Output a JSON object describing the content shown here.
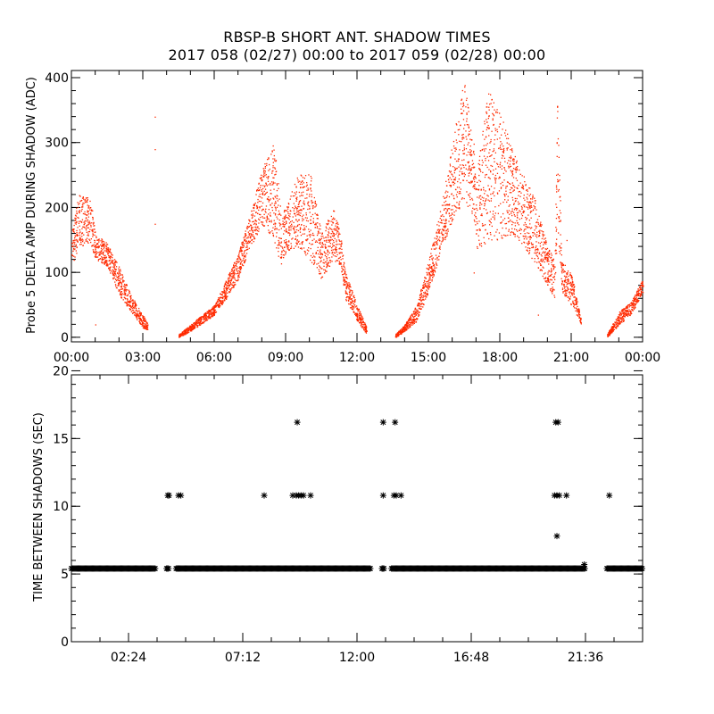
{
  "title": "RBSP-B SHORT ANT. SHADOW TIMES",
  "subtitle": "2017 058 (02/27) 00:00 to 2017 059 (02/28) 00:00",
  "colors": {
    "points": "#ff2a00",
    "axes": "#000000",
    "stars": "#000000"
  },
  "chart_data": [
    {
      "type": "scatter",
      "ylabel": "Probe 5 DELTA AMP DURING SHADOW (ADC)",
      "xlabel": "",
      "xlim_hours": [
        0,
        24
      ],
      "ylim": [
        -7,
        411
      ],
      "xticks": [
        {
          "v": 0,
          "label": "00:00"
        },
        {
          "v": 3,
          "label": "03:00"
        },
        {
          "v": 6,
          "label": "06:00"
        },
        {
          "v": 9,
          "label": "09:00"
        },
        {
          "v": 12,
          "label": "12:00"
        },
        {
          "v": 15,
          "label": "15:00"
        },
        {
          "v": 18,
          "label": "18:00"
        },
        {
          "v": 21,
          "label": "21:00"
        },
        {
          "v": 24,
          "label": "00:00"
        }
      ],
      "yticks": [
        {
          "v": 0,
          "label": "0"
        },
        {
          "v": 100,
          "label": "100"
        },
        {
          "v": 200,
          "label": "200"
        },
        {
          "v": 300,
          "label": "300"
        },
        {
          "v": 400,
          "label": "400"
        }
      ],
      "envelope_note": "dense red point cloud; bands given as [hour, low, high] in ADC",
      "bands": [
        [
          [
            0.0,
            110,
            165
          ],
          [
            0.3,
            140,
            220
          ],
          [
            0.8,
            145,
            215
          ],
          [
            1.0,
            120,
            160
          ],
          [
            1.5,
            110,
            145
          ],
          [
            2.0,
            65,
            110
          ],
          [
            2.5,
            40,
            65
          ],
          [
            3.0,
            15,
            35
          ],
          [
            3.2,
            12,
            20
          ]
        ],
        [
          [
            4.5,
            0,
            5
          ],
          [
            5.0,
            10,
            20
          ],
          [
            5.5,
            22,
            35
          ],
          [
            6.0,
            35,
            50
          ],
          [
            6.5,
            60,
            90
          ],
          [
            7.0,
            90,
            130
          ],
          [
            7.5,
            140,
            190
          ],
          [
            8.0,
            170,
            260
          ],
          [
            8.5,
            150,
            300
          ],
          [
            8.8,
            110,
            200
          ],
          [
            9.0,
            130,
            200
          ],
          [
            9.5,
            140,
            250
          ],
          [
            10.0,
            120,
            260
          ],
          [
            10.5,
            90,
            160
          ],
          [
            11.0,
            120,
            200
          ],
          [
            11.3,
            110,
            160
          ],
          [
            11.5,
            60,
            100
          ],
          [
            12.0,
            25,
            50
          ],
          [
            12.4,
            5,
            15
          ]
        ],
        [
          [
            13.6,
            0,
            5
          ],
          [
            14.0,
            10,
            20
          ],
          [
            14.5,
            25,
            50
          ],
          [
            15.0,
            70,
            120
          ],
          [
            15.5,
            130,
            200
          ],
          [
            16.0,
            180,
            300
          ],
          [
            16.5,
            210,
            400
          ],
          [
            16.9,
            180,
            300
          ],
          [
            17.0,
            130,
            250
          ],
          [
            17.5,
            150,
            380
          ],
          [
            18.0,
            150,
            350
          ],
          [
            18.5,
            160,
            290
          ],
          [
            19.0,
            140,
            250
          ],
          [
            19.5,
            110,
            210
          ],
          [
            20.0,
            80,
            140
          ],
          [
            20.3,
            60,
            120
          ],
          [
            20.4,
            160,
            380
          ],
          [
            20.6,
            70,
            120
          ],
          [
            21.0,
            50,
            100
          ],
          [
            21.4,
            20,
            30
          ]
        ],
        [
          [
            22.5,
            0,
            5
          ],
          [
            23.0,
            20,
            40
          ],
          [
            23.5,
            35,
            55
          ],
          [
            24.0,
            70,
            90
          ]
        ]
      ],
      "outliers": [
        [
          3.5,
          340
        ],
        [
          3.5,
          290
        ],
        [
          3.5,
          175
        ],
        [
          1.0,
          20
        ],
        [
          16.9,
          100
        ],
        [
          20.8,
          150
        ],
        [
          19.6,
          35
        ]
      ]
    },
    {
      "type": "scatter",
      "ylabel": "TIME BETWEEN SHADOWS (SEC)",
      "xlabel": "",
      "xlim_hours": [
        0,
        24
      ],
      "ylim": [
        0,
        19.7
      ],
      "xticks": [
        {
          "v": 2.4,
          "label": "02:24"
        },
        {
          "v": 7.2,
          "label": "07:12"
        },
        {
          "v": 12,
          "label": "12:00"
        },
        {
          "v": 16.8,
          "label": "16:48"
        },
        {
          "v": 21.6,
          "label": "21:36"
        }
      ],
      "yticks": [
        {
          "v": 0,
          "label": "0"
        },
        {
          "v": 5,
          "label": "5"
        },
        {
          "v": 10,
          "label": "10"
        },
        {
          "v": 15,
          "label": "15"
        },
        {
          "v": 20,
          "label": "20"
        }
      ],
      "baseline_value": 5.4,
      "baseline_segments_hours": [
        [
          0,
          3.55
        ],
        [
          4.0,
          4.1
        ],
        [
          4.4,
          12.57
        ],
        [
          13.05,
          13.15
        ],
        [
          13.45,
          21.6
        ],
        [
          22.5,
          24
        ]
      ],
      "points": [
        [
          9.49,
          16.2
        ],
        [
          13.1,
          16.2
        ],
        [
          13.6,
          16.2
        ],
        [
          20.35,
          16.2
        ],
        [
          20.45,
          16.2
        ],
        [
          4.05,
          10.8
        ],
        [
          4.1,
          10.8
        ],
        [
          4.5,
          10.8
        ],
        [
          4.6,
          10.8
        ],
        [
          8.1,
          10.8
        ],
        [
          9.3,
          10.8
        ],
        [
          9.45,
          10.8
        ],
        [
          9.55,
          10.8
        ],
        [
          9.65,
          10.8
        ],
        [
          9.75,
          10.8
        ],
        [
          10.05,
          10.8
        ],
        [
          13.1,
          10.8
        ],
        [
          13.55,
          10.8
        ],
        [
          13.65,
          10.8
        ],
        [
          13.85,
          10.8
        ],
        [
          20.3,
          10.8
        ],
        [
          20.4,
          10.8
        ],
        [
          20.5,
          10.8
        ],
        [
          20.8,
          10.8
        ],
        [
          22.6,
          10.8
        ],
        [
          20.4,
          7.8
        ],
        [
          21.55,
          5.7
        ]
      ]
    }
  ]
}
